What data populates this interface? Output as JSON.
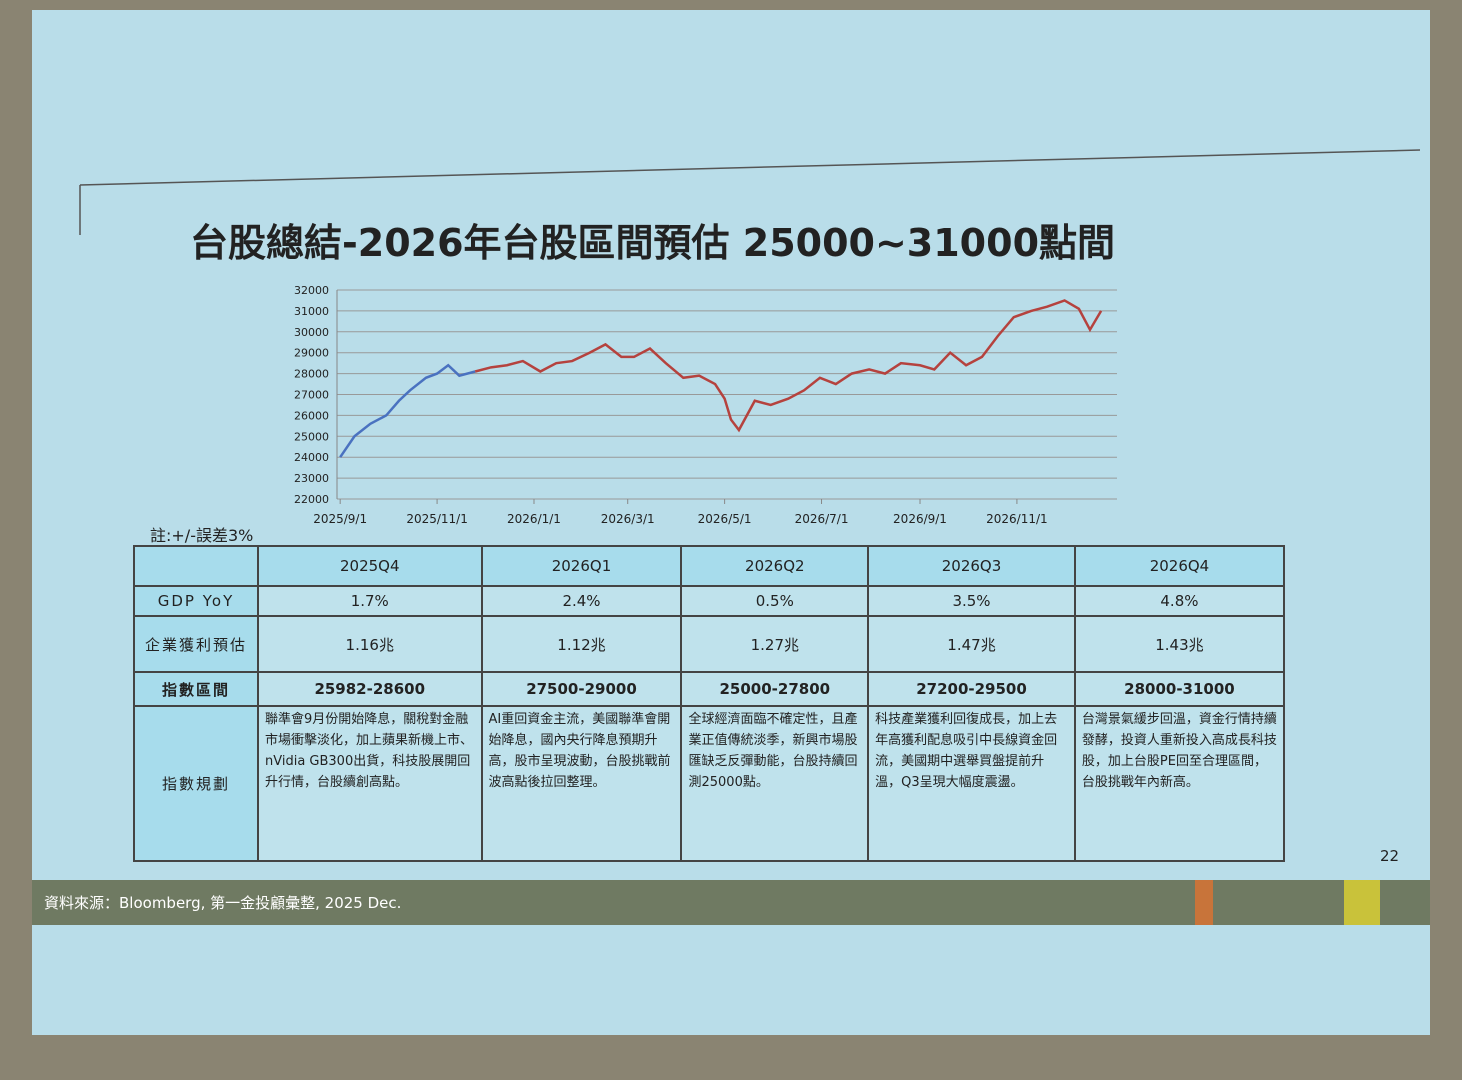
{
  "title": "台股總結-2026年台股區間預估 25000~31000點間",
  "chart_data": {
    "type": "line",
    "x": [
      "2025/9/1",
      "2025/9/10",
      "2025/9/20",
      "2025/9/30",
      "2025/10/8",
      "2025/10/15",
      "2025/10/25",
      "2025/11/1",
      "2025/11/8",
      "2025/11/15",
      "2025/11/25",
      "2025/12/5",
      "2025/12/15",
      "2025/12/25",
      "2026/1/5",
      "2026/1/15",
      "2026/1/25",
      "2026/2/5",
      "2026/2/15",
      "2026/2/25",
      "2026/3/5",
      "2026/3/15",
      "2026/3/25",
      "2026/4/5",
      "2026/4/15",
      "2026/4/25",
      "2026/5/1",
      "2026/5/5",
      "2026/5/10",
      "2026/5/20",
      "2026/5/30",
      "2026/6/10",
      "2026/6/20",
      "2026/6/30",
      "2026/7/10",
      "2026/7/20",
      "2026/7/31",
      "2026/8/10",
      "2026/8/20",
      "2026/9/1",
      "2026/9/10",
      "2026/9/20",
      "2026/9/30",
      "2026/10/10",
      "2026/10/20",
      "2026/10/30",
      "2026/11/10",
      "2026/11/20",
      "2026/12/1",
      "2026/12/10",
      "2026/12/17",
      "2026/12/24"
    ],
    "series": [
      {
        "color": "#4a72c0",
        "values": [
          24000,
          25000,
          25600,
          26000,
          26700,
          27200,
          27800,
          28000,
          28400,
          27900,
          28100,
          null,
          null,
          null,
          null,
          null,
          null,
          null,
          null,
          null,
          null,
          null,
          null,
          null,
          null,
          null,
          null,
          null,
          null,
          null,
          null,
          null,
          null,
          null,
          null,
          null,
          null,
          null,
          null,
          null,
          null,
          null,
          null,
          null,
          null,
          null,
          null,
          null,
          null,
          null,
          null,
          null
        ]
      },
      {
        "color": "#b5423e",
        "values": [
          null,
          null,
          null,
          null,
          null,
          null,
          null,
          null,
          null,
          null,
          28100,
          28300,
          28400,
          28600,
          28100,
          28500,
          28600,
          29000,
          29400,
          28800,
          28800,
          29200,
          28500,
          27800,
          27900,
          27500,
          26800,
          25800,
          25300,
          26700,
          26500,
          26800,
          27200,
          27800,
          27500,
          28000,
          28200,
          28000,
          28500,
          28400,
          28200,
          29000,
          28400,
          28800,
          29800,
          30700,
          31000,
          31200,
          31500,
          31100,
          30100,
          31000
        ]
      }
    ],
    "xlim": [
      "2025/8/30",
      "2027/1/3"
    ],
    "xticks": [
      "2025/9/1",
      "2025/11/1",
      "2026/1/1",
      "2026/3/1",
      "2026/5/1",
      "2026/7/1",
      "2026/9/1",
      "2026/11/1"
    ],
    "ylim": [
      22000,
      32000
    ],
    "yticks": [
      22000,
      23000,
      24000,
      25000,
      26000,
      27000,
      28000,
      29000,
      30000,
      31000,
      32000
    ],
    "grid": true
  },
  "note": "註:+/-誤差3%",
  "table": {
    "columns": [
      "2025Q4",
      "2026Q1",
      "2026Q2",
      "2026Q3",
      "2026Q4"
    ],
    "rows": [
      {
        "label": "GDP YoY",
        "cells": [
          "1.7%",
          "2.4%",
          "0.5%",
          "3.5%",
          "4.8%"
        ]
      },
      {
        "label": "企業獲利預估",
        "cells": [
          "1.16兆",
          "1.12兆",
          "1.27兆",
          "1.47兆",
          "1.43兆"
        ]
      },
      {
        "label": "指數區間",
        "cells": [
          "25982-28600",
          "27500-29000",
          "25000-27800",
          "27200-29500",
          "28000-31000"
        ]
      },
      {
        "label": "指數規劃",
        "cells": [
          "聯準會9月份開始降息，關稅對金融市場衝擊淡化，加上蘋果新機上市、nVidia GB300出貨，科技股展開回升行情，台股續創高點。",
          "AI重回資金主流，美國聯準會開始降息，國內央行降息預期升高，股市呈現波動，台股挑戰前波高點後拉回整理。",
          "全球經濟面臨不確定性，且產業正值傳統淡季，新興市場股匯缺乏反彈動能，台股持續回測25000點。",
          "科技產業獲利回復成長，加上去年高獲利配息吸引中長線資金回流，美國期中選舉買盤提前升溫，Q3呈現大幅度震盪。",
          "台灣景氣緩步回溫，資金行情持續發酵，投資人重新投入高成長科技股，加上台股PE回至合理區間，台股挑戰年內新高。"
        ]
      }
    ]
  },
  "footer": "資料來源：Bloomberg, 第一金投顧彙整, 2025 Dec.",
  "page_number": "22"
}
